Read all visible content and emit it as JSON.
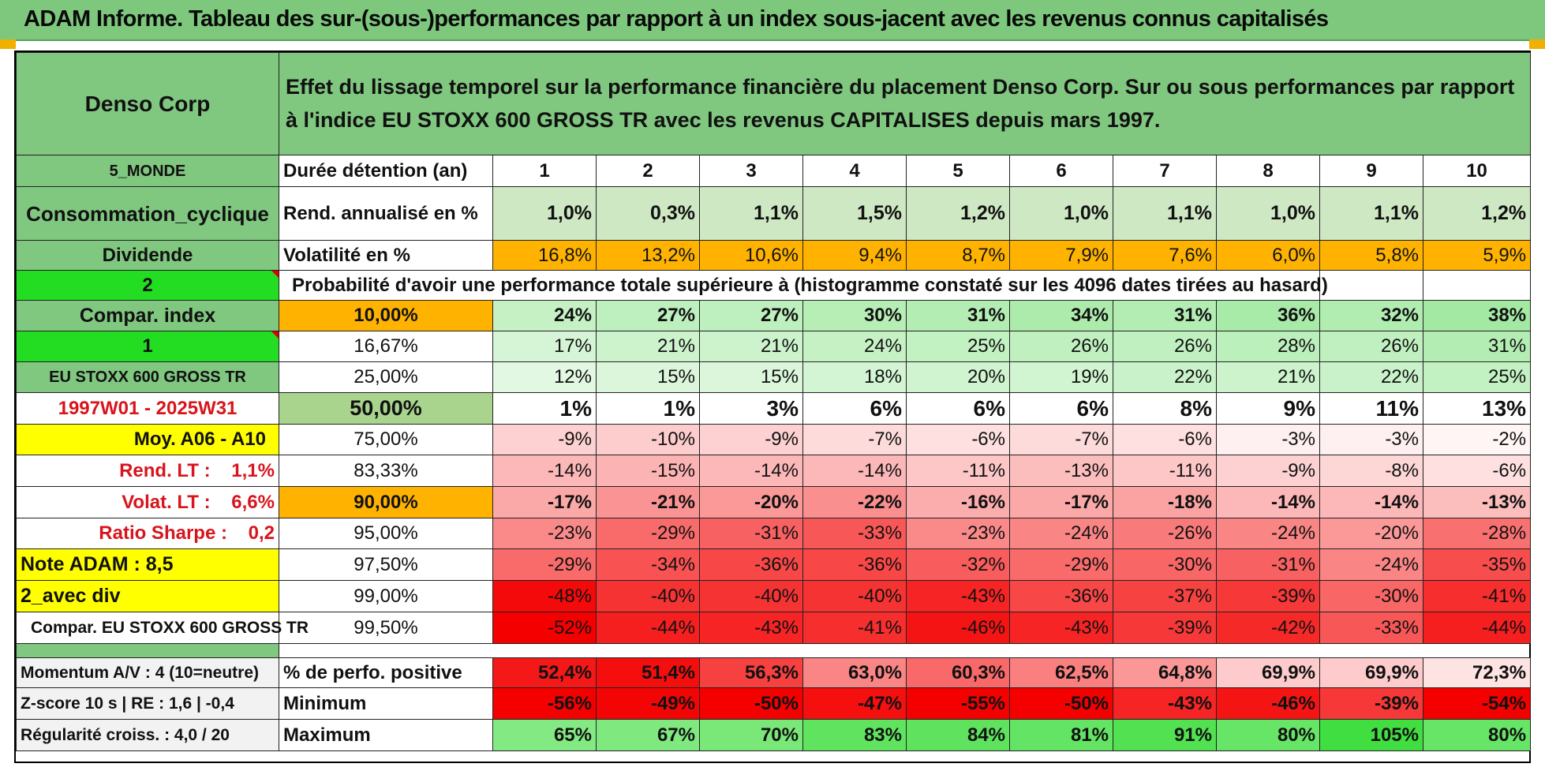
{
  "header": {
    "title": "ADAM Informe. Tableau des sur-(sous-)performances par rapport à un index sous-jacent avec les revenus connus capitalisés"
  },
  "left": {
    "company": "Denso Corp",
    "region": "5_MONDE",
    "sector": "Consommation_cyclique",
    "dividend": "Dividende",
    "selector1": "2",
    "compar_index": "Compar. index",
    "selector2": "1",
    "index_name": "EU STOXX 600 GROSS TR",
    "period": "1997W01 - 2025W31",
    "moy": "Moy. A06 - A10",
    "rend_lt": "Rend. LT :    1,1%",
    "volat_lt": "Volat. LT :    6,6%",
    "ratio_sharpe": "Ratio Sharpe :    0,2",
    "note": "Note ADAM : 8,5",
    "avec_div": "2_avec div",
    "compar_label": "Compar. EU STOXX 600 GROSS TR",
    "momentum": "Momentum A/V : 4 (10=neutre)",
    "zscore": "Z-score 10 s | RE : 1,6 | -0,4",
    "regularite": "Régularité croiss. : 4,0 / 20"
  },
  "description": "Effet du lissage temporel sur la performance financière du placement Denso Corp. Sur ou sous performances par rapport à l'indice EU STOXX 600 GROSS TR avec les revenus CAPITALISES depuis mars 1997.",
  "rows_header": {
    "duration_label": "Durée détention (an)",
    "years": [
      "1",
      "2",
      "3",
      "4",
      "5",
      "6",
      "7",
      "8",
      "9",
      "10"
    ],
    "rend_label": "Rend. annualisé en %",
    "rend": [
      "1,0%",
      "0,3%",
      "1,1%",
      "1,5%",
      "1,2%",
      "1,0%",
      "1,1%",
      "1,0%",
      "1,1%",
      "1,2%"
    ],
    "vol_label": "Volatilité en %",
    "vol": [
      "16,8%",
      "13,2%",
      "10,6%",
      "9,4%",
      "8,7%",
      "7,9%",
      "7,6%",
      "6,0%",
      "5,8%",
      "5,9%"
    ],
    "prob_label": "Probabilité d'avoir une performance totale supérieure à (histogramme constaté sur les 4096 dates tirées au hasard)"
  },
  "quantiles": [
    {
      "q": "10,00%",
      "vals": [
        "24%",
        "27%",
        "27%",
        "30%",
        "31%",
        "34%",
        "31%",
        "36%",
        "32%",
        "38%"
      ]
    },
    {
      "q": "16,67%",
      "vals": [
        "17%",
        "21%",
        "21%",
        "24%",
        "25%",
        "26%",
        "26%",
        "28%",
        "26%",
        "31%"
      ]
    },
    {
      "q": "25,00%",
      "vals": [
        "12%",
        "15%",
        "15%",
        "18%",
        "20%",
        "19%",
        "22%",
        "21%",
        "22%",
        "25%"
      ]
    },
    {
      "q": "50,00%",
      "vals": [
        "1%",
        "1%",
        "3%",
        "6%",
        "6%",
        "6%",
        "8%",
        "9%",
        "11%",
        "13%"
      ]
    },
    {
      "q": "75,00%",
      "vals": [
        "-9%",
        "-10%",
        "-9%",
        "-7%",
        "-6%",
        "-7%",
        "-6%",
        "-3%",
        "-3%",
        "-2%"
      ]
    },
    {
      "q": "83,33%",
      "vals": [
        "-14%",
        "-15%",
        "-14%",
        "-14%",
        "-11%",
        "-13%",
        "-11%",
        "-9%",
        "-8%",
        "-6%"
      ]
    },
    {
      "q": "90,00%",
      "vals": [
        "-17%",
        "-21%",
        "-20%",
        "-22%",
        "-16%",
        "-17%",
        "-18%",
        "-14%",
        "-14%",
        "-13%"
      ]
    },
    {
      "q": "95,00%",
      "vals": [
        "-23%",
        "-29%",
        "-31%",
        "-33%",
        "-23%",
        "-24%",
        "-26%",
        "-24%",
        "-20%",
        "-28%"
      ]
    },
    {
      "q": "97,50%",
      "vals": [
        "-29%",
        "-34%",
        "-36%",
        "-36%",
        "-32%",
        "-29%",
        "-30%",
        "-31%",
        "-24%",
        "-35%"
      ]
    },
    {
      "q": "99,00%",
      "vals": [
        "-48%",
        "-40%",
        "-40%",
        "-40%",
        "-43%",
        "-36%",
        "-37%",
        "-39%",
        "-30%",
        "-41%"
      ]
    },
    {
      "q": "99,50%",
      "vals": [
        "-52%",
        "-44%",
        "-43%",
        "-41%",
        "-46%",
        "-43%",
        "-39%",
        "-42%",
        "-33%",
        "-44%"
      ]
    }
  ],
  "summary": [
    {
      "label": "% de perfo. positive",
      "vals": [
        "52,4%",
        "51,4%",
        "56,3%",
        "63,0%",
        "60,3%",
        "62,5%",
        "64,8%",
        "69,9%",
        "69,9%",
        "72,3%"
      ]
    },
    {
      "label": "Minimum",
      "vals": [
        "-56%",
        "-49%",
        "-50%",
        "-47%",
        "-55%",
        "-50%",
        "-43%",
        "-46%",
        "-39%",
        "-54%"
      ]
    },
    {
      "label": "Maximum",
      "vals": [
        "65%",
        "67%",
        "70%",
        "83%",
        "84%",
        "81%",
        "91%",
        "80%",
        "105%",
        "80%"
      ]
    }
  ],
  "colors": {
    "header_green": "#7ec87e",
    "label_green": "#80c780",
    "bright_green": "#22dd22",
    "yellow": "#ffff00",
    "orange": "#ffb300",
    "negative_red": "#f80000",
    "positive_green": "#4ee04e"
  }
}
